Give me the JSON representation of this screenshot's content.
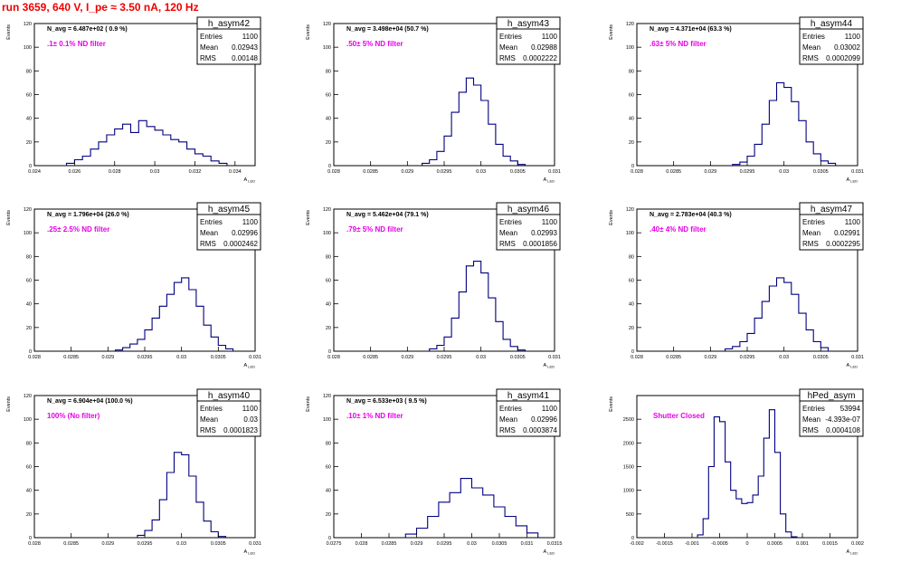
{
  "page": {
    "title": "run 3659,   640 V, I_pe ≈ 3.50 nA, 120 Hz"
  },
  "colors": {
    "title": "#ee0000",
    "hist": "#000080",
    "annotation": "#e600e6",
    "axis": "#000000"
  },
  "chart_data": [
    {
      "type": "histogram",
      "name": "h_asym42",
      "stats": {
        "Entries": "1100",
        "Mean": "0.02943",
        "RMS": "0.00148"
      },
      "navg": "N_avg = 6.487e+02 ( 0.9 %)",
      "filter": ".1± 0.1% ND filter",
      "ylabel": "Events",
      "xlabel": "A_LED",
      "xlim": [
        0.024,
        0.035
      ],
      "ylim": [
        0,
        120
      ],
      "xticks": [
        0.024,
        0.026,
        0.028,
        0.03,
        0.032,
        0.034
      ],
      "xtick_labels": [
        "0.024",
        "0.026",
        "0.028",
        "0.03",
        "0.032",
        "0.034"
      ],
      "yticks": [
        0,
        20,
        40,
        60,
        80,
        100,
        120
      ],
      "xbins": [
        0.0258,
        0.0262,
        0.0266,
        0.027,
        0.0274,
        0.0278,
        0.0282,
        0.0286,
        0.029,
        0.0294,
        0.0298,
        0.0302,
        0.0306,
        0.031,
        0.0314,
        0.0318,
        0.0322,
        0.0326,
        0.033,
        0.0334
      ],
      "counts": [
        2,
        5,
        8,
        14,
        20,
        26,
        31,
        35,
        28,
        38,
        33,
        30,
        26,
        22,
        20,
        14,
        10,
        8,
        4,
        2
      ]
    },
    {
      "type": "histogram",
      "name": "h_asym43",
      "stats": {
        "Entries": "1100",
        "Mean": "0.02988",
        "RMS": "0.0002222"
      },
      "navg": "N_avg = 3.498e+04 (50.7 %)",
      "filter": ".50± 5% ND filter",
      "ylabel": "Events",
      "xlabel": "A_LED",
      "xlim": [
        0.028,
        0.031
      ],
      "ylim": [
        0,
        120
      ],
      "xticks": [
        0.028,
        0.0285,
        0.029,
        0.0295,
        0.03,
        0.0305,
        0.031
      ],
      "xtick_labels": [
        "0.028",
        "0.0285",
        "0.029",
        "0.0295",
        "0.03",
        "0.0305",
        "0.031"
      ],
      "yticks": [
        0,
        20,
        40,
        60,
        80,
        100,
        120
      ],
      "xbins": [
        0.02925,
        0.02935,
        0.02945,
        0.02955,
        0.02965,
        0.02975,
        0.02985,
        0.02995,
        0.03005,
        0.03015,
        0.03025,
        0.03035,
        0.03045,
        0.03055
      ],
      "counts": [
        2,
        5,
        12,
        25,
        45,
        62,
        74,
        68,
        55,
        35,
        18,
        8,
        4,
        1
      ]
    },
    {
      "type": "histogram",
      "name": "h_asym44",
      "stats": {
        "Entries": "1100",
        "Mean": "0.03002",
        "RMS": "0.0002099"
      },
      "navg": "N_avg = 4.371e+04 (63.3 %)",
      "filter": ".63± 5% ND filter",
      "ylabel": "Events",
      "xlabel": "A_LED",
      "xlim": [
        0.028,
        0.031
      ],
      "ylim": [
        0,
        120
      ],
      "xticks": [
        0.028,
        0.0285,
        0.029,
        0.0295,
        0.03,
        0.0305,
        0.031
      ],
      "xtick_labels": [
        "0.028",
        "0.0285",
        "0.029",
        "0.0295",
        "0.03",
        "0.0305",
        "0.031"
      ],
      "yticks": [
        0,
        20,
        40,
        60,
        80,
        100,
        120
      ],
      "xbins": [
        0.02935,
        0.02945,
        0.02955,
        0.02965,
        0.02975,
        0.02985,
        0.02995,
        0.03005,
        0.03015,
        0.03025,
        0.03035,
        0.03045,
        0.03055,
        0.03065
      ],
      "counts": [
        1,
        3,
        8,
        18,
        35,
        55,
        70,
        66,
        54,
        38,
        20,
        10,
        4,
        2
      ]
    },
    {
      "type": "histogram",
      "name": "h_asym45",
      "stats": {
        "Entries": "1100",
        "Mean": "0.02996",
        "RMS": "0.0002462"
      },
      "navg": "N_avg = 1.796e+04 (26.0 %)",
      "filter": ".25± 2.5% ND filter",
      "ylabel": "Events",
      "xlabel": "A_LED",
      "xlim": [
        0.028,
        0.031
      ],
      "ylim": [
        0,
        120
      ],
      "xticks": [
        0.028,
        0.0285,
        0.029,
        0.0295,
        0.03,
        0.0305,
        0.031
      ],
      "xtick_labels": [
        "0.028",
        "0.0285",
        "0.029",
        "0.0295",
        "0.03",
        "0.0305",
        "0.031"
      ],
      "yticks": [
        0,
        20,
        40,
        60,
        80,
        100,
        120
      ],
      "xbins": [
        0.02915,
        0.02925,
        0.02935,
        0.02945,
        0.02955,
        0.02965,
        0.02975,
        0.02985,
        0.02995,
        0.03005,
        0.03015,
        0.03025,
        0.03035,
        0.03045,
        0.03055,
        0.03065
      ],
      "counts": [
        1,
        3,
        6,
        10,
        18,
        28,
        38,
        48,
        58,
        62,
        52,
        38,
        22,
        12,
        5,
        2
      ]
    },
    {
      "type": "histogram",
      "name": "h_asym46",
      "stats": {
        "Entries": "1100",
        "Mean": "0.02993",
        "RMS": "0.0001856"
      },
      "navg": "N_avg = 5.462e+04 (79.1 %)",
      "filter": ".79± 5% ND filter",
      "ylabel": "Events",
      "xlabel": "A_LED",
      "xlim": [
        0.028,
        0.031
      ],
      "ylim": [
        0,
        120
      ],
      "xticks": [
        0.028,
        0.0285,
        0.029,
        0.0295,
        0.03,
        0.0305,
        0.031
      ],
      "xtick_labels": [
        "0.028",
        "0.0285",
        "0.029",
        "0.0295",
        "0.03",
        "0.0305",
        "0.031"
      ],
      "yticks": [
        0,
        20,
        40,
        60,
        80,
        100,
        120
      ],
      "xbins": [
        0.02935,
        0.02945,
        0.02955,
        0.02965,
        0.02975,
        0.02985,
        0.02995,
        0.03005,
        0.03015,
        0.03025,
        0.03035,
        0.03045,
        0.03055
      ],
      "counts": [
        2,
        5,
        12,
        28,
        50,
        72,
        76,
        66,
        45,
        25,
        10,
        4,
        1
      ]
    },
    {
      "type": "histogram",
      "name": "h_asym47",
      "stats": {
        "Entries": "1100",
        "Mean": "0.02991",
        "RMS": "0.0002295"
      },
      "navg": "N_avg = 2.783e+04 (40.3 %)",
      "filter": ".40± 4% ND filter",
      "ylabel": "Events",
      "xlabel": "A_LED",
      "xlim": [
        0.028,
        0.031
      ],
      "ylim": [
        0,
        120
      ],
      "xticks": [
        0.028,
        0.0285,
        0.029,
        0.0295,
        0.03,
        0.0305,
        0.031
      ],
      "xtick_labels": [
        "0.028",
        "0.0285",
        "0.029",
        "0.0295",
        "0.03",
        "0.0305",
        "0.031"
      ],
      "yticks": [
        0,
        20,
        40,
        60,
        80,
        100,
        120
      ],
      "xbins": [
        0.02925,
        0.02935,
        0.02945,
        0.02955,
        0.02965,
        0.02975,
        0.02985,
        0.02995,
        0.03005,
        0.03015,
        0.03025,
        0.03035,
        0.03045,
        0.03055
      ],
      "counts": [
        2,
        4,
        8,
        15,
        28,
        42,
        55,
        62,
        58,
        48,
        32,
        18,
        8,
        3
      ]
    },
    {
      "type": "histogram",
      "name": "h_asym40",
      "stats": {
        "Entries": "1100",
        "Mean": "0.03",
        "RMS": "0.0001823"
      },
      "navg": "N_avg = 6.904e+04 (100.0 %)",
      "filter": "100% (No filter)",
      "ylabel": "Events",
      "xlabel": "A_LED",
      "xlim": [
        0.028,
        0.031
      ],
      "ylim": [
        0,
        120
      ],
      "xticks": [
        0.028,
        0.0285,
        0.029,
        0.0295,
        0.03,
        0.0305,
        0.031
      ],
      "xtick_labels": [
        "0.028",
        "0.0285",
        "0.029",
        "0.0295",
        "0.03",
        "0.0305",
        "0.031"
      ],
      "yticks": [
        0,
        20,
        40,
        60,
        80,
        100,
        120
      ],
      "xbins": [
        0.02945,
        0.02955,
        0.02965,
        0.02975,
        0.02985,
        0.02995,
        0.03005,
        0.03015,
        0.03025,
        0.03035,
        0.03045,
        0.03055
      ],
      "counts": [
        2,
        6,
        15,
        32,
        55,
        72,
        70,
        52,
        30,
        14,
        5,
        1
      ]
    },
    {
      "type": "histogram",
      "name": "h_asym41",
      "stats": {
        "Entries": "1100",
        "Mean": "0.02996",
        "RMS": "0.0003874"
      },
      "navg": "N_avg = 6.533e+03 ( 9.5 %)",
      "filter": ".10± 1% ND filter",
      "ylabel": "Events",
      "xlabel": "A_LED",
      "xlim": [
        0.0275,
        0.0315
      ],
      "ylim": [
        0,
        120
      ],
      "xticks": [
        0.0275,
        0.028,
        0.0285,
        0.029,
        0.0295,
        0.03,
        0.0305,
        0.031,
        0.0315
      ],
      "xtick_labels": [
        "0.0275",
        "0.028",
        "0.0285",
        "0.029",
        "0.0295",
        "0.03",
        "0.0305",
        "0.031",
        "0.0315"
      ],
      "yticks": [
        0,
        20,
        40,
        60,
        80,
        100,
        120
      ],
      "xbins": [
        0.0289,
        0.0291,
        0.0293,
        0.0295,
        0.0297,
        0.0299,
        0.0301,
        0.0303,
        0.0305,
        0.0307,
        0.0309,
        0.0311
      ],
      "counts": [
        3,
        8,
        18,
        30,
        38,
        50,
        42,
        36,
        26,
        18,
        10,
        4
      ]
    },
    {
      "type": "histogram",
      "name": "hPed_asym",
      "stats": {
        "Entries": "53994",
        "Mean": "-4.393e-07",
        "RMS": "0.0004108"
      },
      "navg": "",
      "filter": "Shutter Closed",
      "ylabel": "Events",
      "xlabel": "A_LED",
      "xlim": [
        -0.002,
        0.002
      ],
      "ylim": [
        0,
        3000
      ],
      "xticks": [
        -0.002,
        -0.0015,
        -0.001,
        -0.0005,
        0,
        0.0005,
        0.001,
        0.0015,
        0.002
      ],
      "xtick_labels": [
        "-0.002",
        "-0.0015",
        "-0.001",
        "-0.0005",
        "0",
        "0.0005",
        "0.001",
        "0.0015",
        "0.002"
      ],
      "yticks": [
        0,
        500,
        1000,
        1500,
        2000,
        2500
      ],
      "xbins": [
        -0.00085,
        -0.00075,
        -0.00065,
        -0.00055,
        -0.00045,
        -0.00035,
        -0.00025,
        -0.00015,
        -5e-05,
        5e-05,
        0.00015,
        0.00025,
        0.00035,
        0.00045,
        0.00055,
        0.00065,
        0.00075,
        0.00085
      ],
      "counts": [
        60,
        400,
        1500,
        2550,
        2450,
        1600,
        1000,
        820,
        720,
        740,
        900,
        1300,
        2100,
        2700,
        1800,
        500,
        120,
        20
      ]
    }
  ]
}
